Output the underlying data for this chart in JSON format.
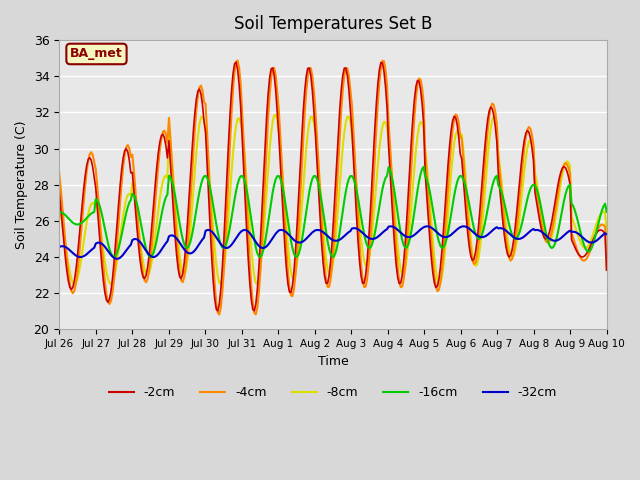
{
  "title": "Soil Temperatures Set B",
  "xlabel": "Time",
  "ylabel": "Soil Temperature (C)",
  "ylim": [
    20,
    36
  ],
  "legend_label": "BA_met",
  "series": {
    "-2cm": {
      "color": "#cc0000",
      "lw": 1.2
    },
    "-4cm": {
      "color": "#ff8800",
      "lw": 1.5
    },
    "-8cm": {
      "color": "#dddd00",
      "lw": 1.5
    },
    "-16cm": {
      "color": "#00cc00",
      "lw": 1.5
    },
    "-32cm": {
      "color": "#0000cc",
      "lw": 1.5
    }
  },
  "xtick_labels": [
    "Jul 26",
    "Jul 27",
    "Jul 28",
    "Jul 29",
    "Jul 30",
    "Jul 31",
    "Aug 1",
    "Aug 2",
    "Aug 3",
    "Aug 4",
    "Aug 5",
    "Aug 6",
    "Aug 7",
    "Aug 8",
    "Aug 9",
    "Aug 10"
  ],
  "ytick_labels": [
    20,
    22,
    24,
    26,
    28,
    30,
    32,
    34,
    36
  ]
}
